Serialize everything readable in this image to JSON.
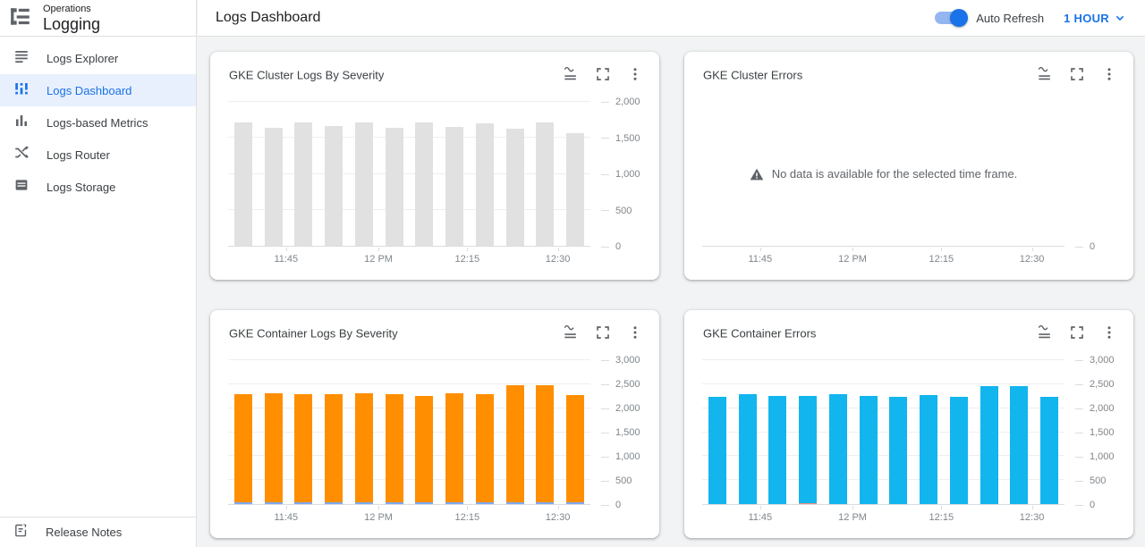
{
  "header": {
    "product": "Operations",
    "service": "Logging",
    "page_title": "Logs Dashboard",
    "auto_refresh_label": "Auto Refresh",
    "auto_refresh_on": true,
    "time_range_label": "1 HOUR"
  },
  "sidebar": {
    "items": [
      {
        "label": "Logs Explorer",
        "active": false
      },
      {
        "label": "Logs Dashboard",
        "active": true
      },
      {
        "label": "Logs-based Metrics",
        "active": false
      },
      {
        "label": "Logs Router",
        "active": false
      },
      {
        "label": "Logs Storage",
        "active": false
      }
    ],
    "footer": {
      "label": "Release Notes"
    }
  },
  "colors": {
    "accent_blue": "#1A73E8",
    "active_row_bg": "#E8F0FE",
    "bar_gray": "#E1E1E1",
    "bar_orange": "#FF8F00",
    "bar_cyan": "#12B5ED",
    "stack_blue": "#7BAAF7",
    "stack_red": "#F28B82",
    "axis_text": "#80868B"
  },
  "chart_data": [
    {
      "type": "bar",
      "title": "GKE Cluster Logs By Severity",
      "x": [
        "11:45",
        "12 PM",
        "12:15",
        "12:30"
      ],
      "ylim": [
        0,
        2000
      ],
      "yticks": [
        {
          "v": 0,
          "label": "0"
        },
        {
          "v": 500,
          "label": "500"
        },
        {
          "v": 1000,
          "label": "1,000"
        },
        {
          "v": 1500,
          "label": "1,500"
        },
        {
          "v": 2000,
          "label": "2,000"
        }
      ],
      "series": [
        {
          "name": "logs",
          "color": "#E1E1E1",
          "values": [
            1700,
            1630,
            1700,
            1650,
            1700,
            1625,
            1700,
            1640,
            1695,
            1620,
            1700,
            1560
          ]
        }
      ]
    },
    {
      "type": "empty",
      "title": "GKE Cluster Errors",
      "message": "No data is available for the selected time frame.",
      "x": [
        "11:45",
        "12 PM",
        "12:15",
        "12:30"
      ],
      "ylim": [
        0,
        1
      ],
      "yticks": [
        {
          "v": 0,
          "label": "0"
        }
      ],
      "series": null
    },
    {
      "type": "bar",
      "title": "GKE Container Logs By Severity",
      "x": [
        "11:45",
        "12 PM",
        "12:15",
        "12:30"
      ],
      "ylim": [
        0,
        3000
      ],
      "yticks": [
        {
          "v": 0,
          "label": "0"
        },
        {
          "v": 500,
          "label": "500"
        },
        {
          "v": 1000,
          "label": "1,000"
        },
        {
          "v": 1500,
          "label": "1,500"
        },
        {
          "v": 2000,
          "label": "2,000"
        },
        {
          "v": 2500,
          "label": "2,500"
        },
        {
          "v": 3000,
          "label": "3,000"
        }
      ],
      "series": [
        {
          "name": "severity-base",
          "color": "#7BAAF7",
          "values": [
            40,
            40,
            40,
            40,
            40,
            40,
            40,
            40,
            40,
            40,
            40,
            40
          ]
        },
        {
          "name": "severity-main",
          "color": "#FF8F00",
          "values": [
            2230,
            2260,
            2240,
            2240,
            2260,
            2230,
            2210,
            2250,
            2230,
            2420,
            2420,
            2220
          ]
        }
      ]
    },
    {
      "type": "bar",
      "title": "GKE Container Errors",
      "x": [
        "11:45",
        "12 PM",
        "12:15",
        "12:30"
      ],
      "ylim": [
        0,
        3000
      ],
      "yticks": [
        {
          "v": 0,
          "label": "0"
        },
        {
          "v": 500,
          "label": "500"
        },
        {
          "v": 1000,
          "label": "1,000"
        },
        {
          "v": 1500,
          "label": "1,500"
        },
        {
          "v": 2000,
          "label": "2,000"
        },
        {
          "v": 2500,
          "label": "2,500"
        },
        {
          "v": 3000,
          "label": "3,000"
        }
      ],
      "series": [
        {
          "name": "errors-base",
          "color": "#F28B82",
          "values": [
            0,
            0,
            0,
            15,
            0,
            0,
            0,
            0,
            0,
            0,
            0,
            0
          ]
        },
        {
          "name": "errors-main",
          "color": "#12B5ED",
          "values": [
            2230,
            2280,
            2250,
            2235,
            2280,
            2240,
            2230,
            2260,
            2230,
            2440,
            2440,
            2230
          ]
        }
      ]
    }
  ]
}
